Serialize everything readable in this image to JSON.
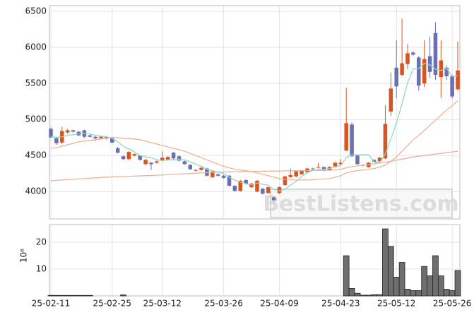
{
  "chart_data": [
    {
      "type": "candlestick",
      "open": [
        4870,
        4740,
        4680,
        4820,
        4850,
        4830,
        4850,
        4780,
        4760,
        4740,
        4760,
        4750,
        4600,
        4490,
        4450,
        4500,
        4500,
        4380,
        4400,
        4400,
        4430,
        4440,
        4540,
        4490,
        4420,
        4370,
        4290,
        4300,
        4320,
        4200,
        4240,
        4220,
        4220,
        4080,
        4010,
        4160,
        4060,
        4000,
        4040,
        3980,
        3920,
        3980,
        4090,
        4200,
        4210,
        4240,
        4270,
        4320,
        4330,
        4340,
        4300,
        4350,
        4380,
        4570,
        4930,
        4500,
        4370,
        4340,
        4440,
        4420,
        4460,
        5110,
        5720,
        5620,
        5770,
        5930,
        5860,
        5500,
        5880,
        6200,
        5590,
        5720,
        5600,
        5420
      ],
      "high": [
        4890,
        4760,
        4900,
        4870,
        4860,
        4840,
        4860,
        4790,
        4770,
        4770,
        4770,
        4760,
        4620,
        4500,
        4560,
        4530,
        4510,
        4450,
        4410,
        4430,
        4560,
        4490,
        4550,
        4500,
        4430,
        4380,
        4310,
        4340,
        4330,
        4290,
        4250,
        4230,
        4230,
        4090,
        4160,
        4170,
        4120,
        4160,
        4050,
        4070,
        3930,
        4070,
        4220,
        4320,
        4290,
        4300,
        4330,
        4330,
        4400,
        4350,
        4350,
        4410,
        4450,
        5440,
        4960,
        4510,
        4380,
        4410,
        4450,
        4480,
        5200,
        5650,
        6100,
        6400,
        6050,
        5950,
        5880,
        6100,
        6150,
        6350,
        6100,
        5750,
        5620,
        6080
      ],
      "low": [
        4740,
        4650,
        4660,
        4800,
        4820,
        4770,
        4740,
        4750,
        4700,
        4730,
        4720,
        4670,
        4530,
        4440,
        4440,
        4490,
        4430,
        4370,
        4300,
        4390,
        4420,
        4430,
        4450,
        4420,
        4370,
        4300,
        4280,
        4290,
        4210,
        4190,
        4210,
        4180,
        4070,
        4000,
        4000,
        4100,
        4050,
        3990,
        3960,
        3970,
        3870,
        3970,
        4080,
        4190,
        4200,
        4230,
        4260,
        4300,
        4320,
        4280,
        4290,
        4340,
        4370,
        4560,
        4480,
        4370,
        4350,
        4330,
        4400,
        4410,
        4450,
        5050,
        5300,
        5600,
        5700,
        5880,
        5400,
        5450,
        5580,
        5550,
        5300,
        5550,
        5290,
        5400
      ],
      "close": [
        4750,
        4670,
        4840,
        4850,
        4830,
        4780,
        4760,
        4760,
        4740,
        4760,
        4740,
        4680,
        4540,
        4450,
        4550,
        4520,
        4440,
        4440,
        4380,
        4420,
        4470,
        4480,
        4460,
        4430,
        4380,
        4310,
        4300,
        4330,
        4220,
        4280,
        4220,
        4190,
        4080,
        4010,
        4150,
        4110,
        4110,
        4150,
        3970,
        4060,
        3880,
        4060,
        4210,
        4230,
        4280,
        4290,
        4320,
        4310,
        4340,
        4290,
        4340,
        4400,
        4400,
        4950,
        4490,
        4380,
        4360,
        4400,
        4410,
        4470,
        4940,
        5430,
        5460,
        5780,
        5920,
        5900,
        5470,
        5840,
        5660,
        5620,
        5820,
        5600,
        5320,
        5680
      ],
      "up_color": "#d9541e",
      "down_color": "#6b70b0",
      "series": [
        {
          "color": "#8fd9c4",
          "values": [
            4760,
            4750,
            4760,
            4780,
            4790,
            4800,
            4810,
            4800,
            4780,
            4770,
            4760,
            4740,
            4690,
            4630,
            4590,
            4550,
            4500,
            4480,
            4470,
            4440,
            4430,
            4440,
            4440,
            4450,
            4440,
            4410,
            4380,
            4350,
            4310,
            4290,
            4270,
            4250,
            4200,
            4160,
            4130,
            4110,
            4090,
            4120,
            4100,
            4090,
            4030,
            4010,
            4030,
            4090,
            4140,
            4210,
            4260,
            4290,
            4310,
            4310,
            4320,
            4340,
            4360,
            4470,
            4510,
            4510,
            4510,
            4510,
            4410,
            4400,
            4520,
            4730,
            4950,
            5220,
            5510,
            5700,
            5710,
            5780,
            5760,
            5700,
            5680,
            5710,
            5600,
            5610
          ]
        },
        {
          "color": "#efb295",
          "values": [
            4600,
            4610,
            4630,
            4650,
            4670,
            4690,
            4700,
            4710,
            4720,
            4730,
            4740,
            4750,
            4745,
            4740,
            4735,
            4730,
            4720,
            4700,
            4680,
            4660,
            4640,
            4620,
            4600,
            4580,
            4560,
            4530,
            4500,
            4470,
            4440,
            4410,
            4380,
            4350,
            4330,
            4310,
            4300,
            4290,
            4280,
            4260,
            4240,
            4220,
            4200,
            4180,
            4170,
            4165,
            4160,
            4160,
            4160,
            4165,
            4170,
            4175,
            4180,
            4200,
            4220,
            4260,
            4280,
            4290,
            4300,
            4310,
            4320,
            4340,
            4370,
            4420,
            4480,
            4560,
            4640,
            4720,
            4780,
            4850,
            4920,
            4990,
            5060,
            5130,
            5190,
            5260
          ]
        },
        {
          "color": "#e9b39a",
          "values": [
            4150,
            4155,
            4160,
            4165,
            4170,
            4175,
            4180,
            4185,
            4190,
            4195,
            4200,
            4203,
            4206,
            4209,
            4212,
            4215,
            4218,
            4221,
            4224,
            4227,
            4230,
            4234,
            4238,
            4242,
            4246,
            4250,
            4254,
            4258,
            4262,
            4266,
            4270,
            4272,
            4274,
            4276,
            4278,
            4280,
            4281,
            4282,
            4283,
            4284,
            4285,
            4286,
            4287,
            4288,
            4289,
            4290,
            4291,
            4292,
            4293,
            4294,
            4295,
            4300,
            4310,
            4330,
            4345,
            4355,
            4365,
            4375,
            4385,
            4395,
            4405,
            4420,
            4435,
            4450,
            4465,
            4480,
            4490,
            4500,
            4510,
            4520,
            4530,
            4540,
            4550,
            4560
          ]
        }
      ],
      "ylim": [
        3620,
        6580
      ],
      "yticks": [
        4000,
        4500,
        5000,
        5500,
        6000,
        6500
      ],
      "grid": true,
      "watermark": "BestListens.com"
    },
    {
      "type": "bar",
      "categories": [
        "25-02-11",
        null,
        null,
        null,
        null,
        null,
        null,
        null,
        null,
        null,
        null,
        "25-02-25",
        null,
        null,
        null,
        null,
        null,
        null,
        null,
        null,
        "25-03-12",
        null,
        null,
        null,
        null,
        null,
        null,
        null,
        null,
        null,
        null,
        "25-03-26",
        null,
        null,
        null,
        null,
        null,
        null,
        null,
        null,
        null,
        "25-04-09",
        null,
        null,
        null,
        null,
        null,
        null,
        null,
        null,
        null,
        null,
        "25-04-23",
        null,
        null,
        null,
        null,
        null,
        null,
        null,
        null,
        null,
        "25-05-12",
        null,
        null,
        null,
        null,
        null,
        null,
        null,
        null,
        null,
        "25-05-26",
        null
      ],
      "values": [
        0.2,
        0.2,
        0.2,
        0.2,
        0.2,
        0.2,
        0.2,
        0.2,
        0,
        0,
        0,
        0,
        0,
        0.4,
        0,
        0,
        0,
        0,
        0,
        0,
        0,
        0,
        0,
        0,
        0,
        0,
        0,
        0,
        0,
        0,
        0,
        0,
        0,
        0,
        0,
        0,
        0,
        0,
        0,
        0,
        0,
        0,
        0,
        0,
        0,
        0,
        0,
        0,
        0,
        0,
        0,
        0,
        0,
        15,
        2.8,
        1,
        0.3,
        0.3,
        0.5,
        0.5,
        25,
        18.5,
        7,
        12.5,
        2.5,
        2,
        2,
        11,
        7.5,
        15,
        7.5,
        2.5,
        2,
        9.5
      ],
      "color": "#6e6e6e",
      "ylabel": "10⁶",
      "ylim": [
        0,
        26.6
      ],
      "yticks": [
        10,
        20
      ],
      "grid": true
    }
  ]
}
